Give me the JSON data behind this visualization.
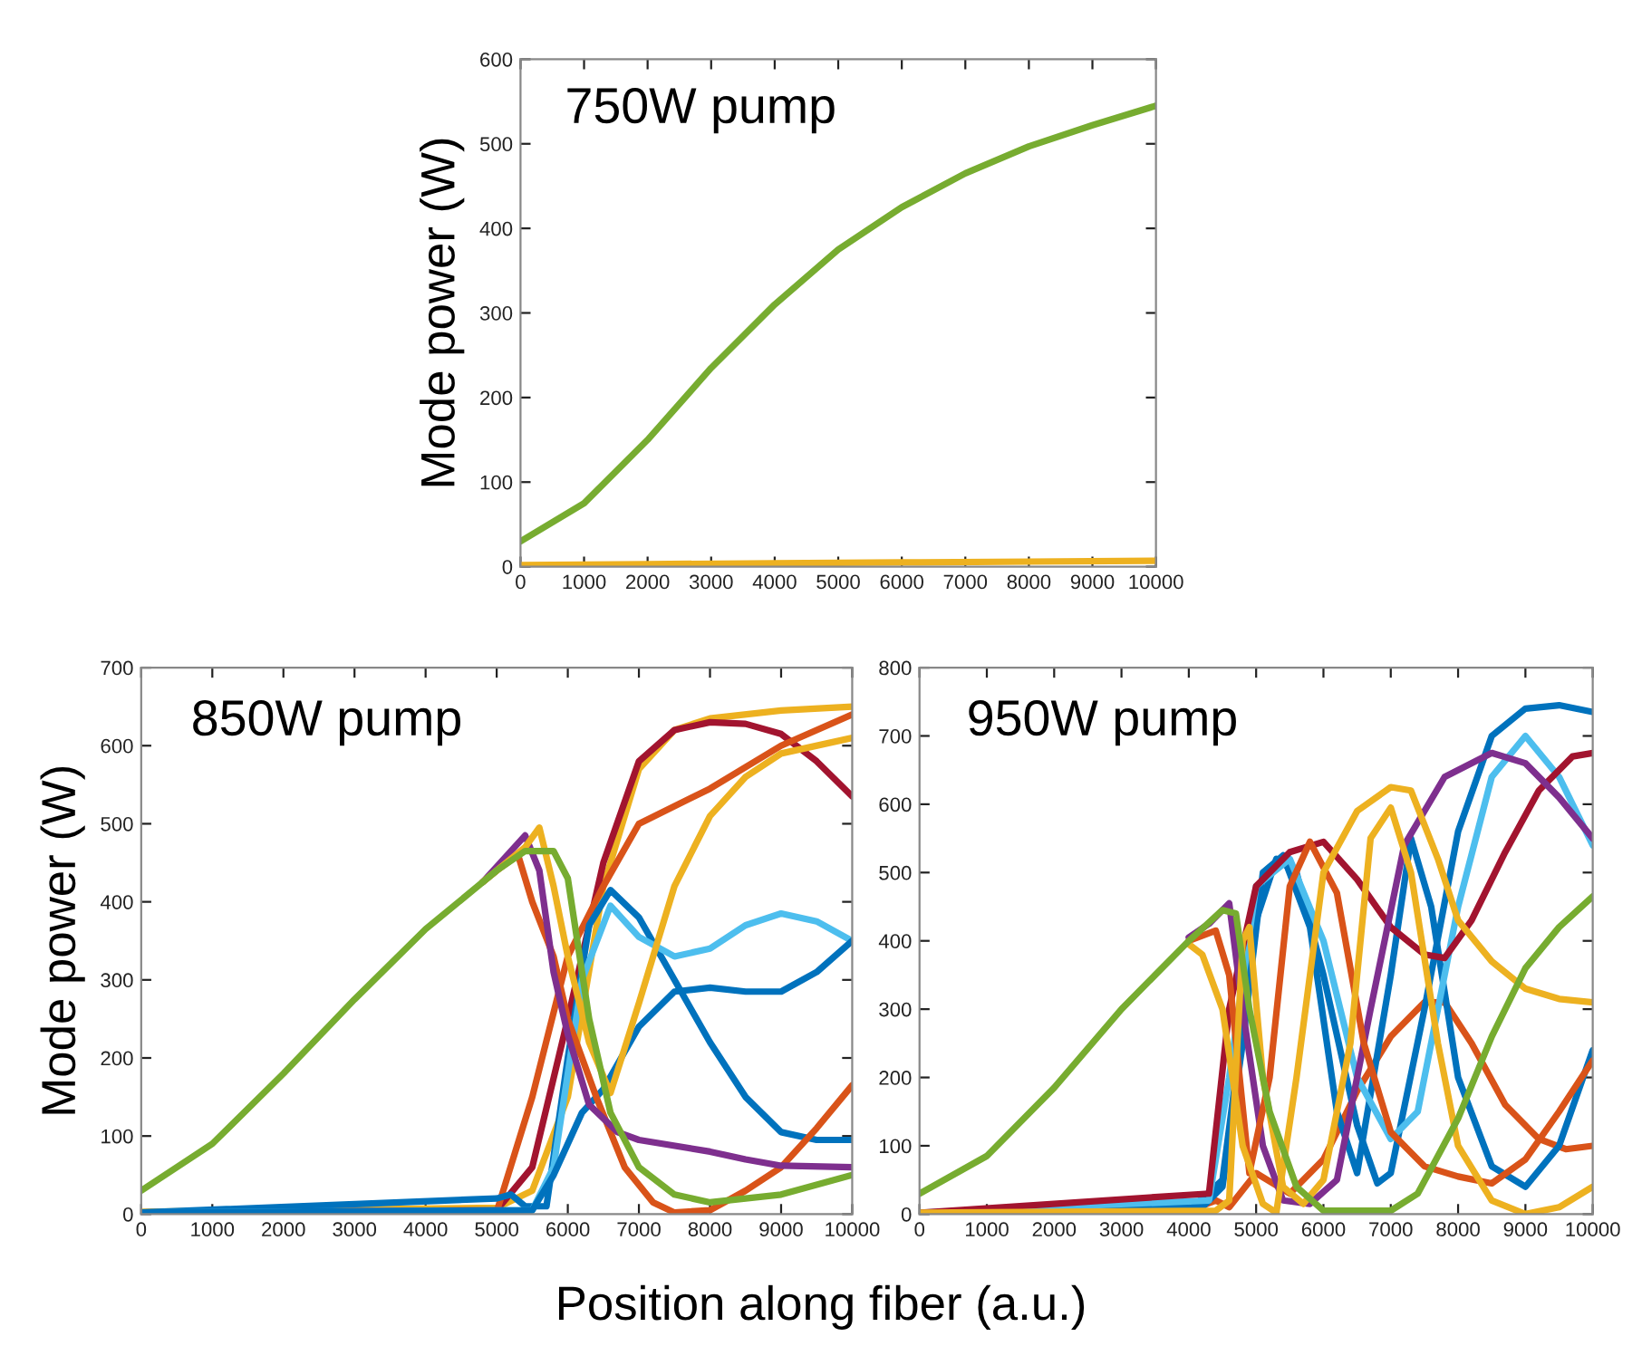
{
  "chart_data": [
    {
      "type": "line",
      "title": "750W pump",
      "ylabel": "Mode power (W)",
      "xlim": [
        0,
        10000
      ],
      "ylim": [
        0,
        600
      ],
      "xticks": [
        0,
        1000,
        2000,
        3000,
        4000,
        5000,
        6000,
        7000,
        8000,
        9000,
        10000
      ],
      "yticks": [
        0,
        100,
        200,
        300,
        400,
        500,
        600
      ],
      "grid": false,
      "legend": false,
      "series": [
        {
          "color": "#edb120",
          "x": [
            0,
            2000,
            4000,
            6000,
            8000,
            10000
          ],
          "values": [
            2,
            3,
            4,
            5,
            6,
            7
          ]
        },
        {
          "color": "#77ac30",
          "x": [
            0,
            1000,
            2000,
            3000,
            4000,
            5000,
            6000,
            7000,
            8000,
            9000,
            10000
          ],
          "values": [
            30,
            75,
            150,
            235,
            310,
            375,
            425,
            465,
            497,
            522,
            545
          ]
        }
      ]
    },
    {
      "type": "line",
      "title": "850W pump",
      "ylabel": "Mode power (W)",
      "xlabel": "Position along fiber (a.u.)",
      "xlim": [
        0,
        10000
      ],
      "ylim": [
        0,
        700
      ],
      "xticks": [
        0,
        1000,
        2000,
        3000,
        4000,
        5000,
        6000,
        7000,
        8000,
        9000,
        10000
      ],
      "yticks": [
        0,
        100,
        200,
        300,
        400,
        500,
        600,
        700
      ],
      "grid": false,
      "legend": false,
      "series": [
        {
          "color": "#edb120",
          "x": [
            0,
            5000,
            5500,
            6000,
            6500,
            7000,
            7500,
            8000,
            9000,
            10000
          ],
          "values": [
            3,
            8,
            30,
            150,
            420,
            570,
            620,
            635,
            645,
            650
          ]
        },
        {
          "color": "#a2142f",
          "x": [
            0,
            5000,
            5500,
            6000,
            6500,
            7000,
            7500,
            8000,
            8500,
            9000,
            9500,
            10000
          ],
          "values": [
            2,
            5,
            60,
            250,
            450,
            580,
            620,
            630,
            628,
            615,
            580,
            535
          ]
        },
        {
          "color": "#d95319",
          "x": [
            0,
            5000,
            5500,
            6000,
            6500,
            7000,
            8000,
            9000,
            10000
          ],
          "values": [
            2,
            3,
            150,
            330,
            420,
            500,
            545,
            600,
            640
          ]
        },
        {
          "color": "#0072bd",
          "x": [
            0,
            5000,
            5200,
            5400,
            5700,
            6000,
            6300,
            6600,
            7000,
            7500,
            8000,
            8500,
            9000,
            9500,
            10000
          ],
          "values": [
            2,
            20,
            25,
            10,
            10,
            200,
            370,
            415,
            380,
            300,
            220,
            150,
            105,
            95,
            95
          ]
        },
        {
          "color": "#4dbeee",
          "x": [
            0,
            5500,
            5800,
            6200,
            6600,
            7000,
            7500,
            8000,
            8500,
            9000,
            9500,
            10000
          ],
          "values": [
            2,
            5,
            60,
            300,
            395,
            355,
            330,
            340,
            370,
            385,
            375,
            350
          ]
        },
        {
          "color": "#0072bd",
          "x": [
            0,
            5500,
            5800,
            6200,
            6500,
            7000,
            7500,
            8000,
            8500,
            9000,
            9500,
            10000
          ],
          "values": [
            2,
            5,
            50,
            130,
            160,
            240,
            285,
            290,
            285,
            285,
            310,
            350
          ]
        },
        {
          "color": "#d95319",
          "x": [
            4800,
            5000,
            5300,
            5500,
            5800,
            6000,
            6400,
            6800,
            7200,
            7500,
            8000,
            8500,
            9000,
            9500,
            10000
          ],
          "values": [
            425,
            440,
            460,
            400,
            330,
            250,
            150,
            60,
            15,
            2,
            5,
            30,
            60,
            110,
            165
          ]
        },
        {
          "color": "#7e2f8e",
          "x": [
            4800,
            5000,
            5400,
            5600,
            5800,
            6000,
            6300,
            6700,
            7000,
            8000,
            8500,
            9000,
            10000
          ],
          "values": [
            425,
            445,
            485,
            440,
            310,
            230,
            140,
            105,
            95,
            80,
            70,
            62,
            60
          ]
        },
        {
          "color": "#edb120",
          "x": [
            4800,
            5000,
            5400,
            5600,
            5800,
            6000,
            6300,
            6600,
            7000,
            7500,
            8000,
            8500,
            9000,
            10000
          ],
          "values": [
            425,
            440,
            470,
            495,
            420,
            330,
            220,
            155,
            270,
            420,
            510,
            560,
            590,
            610
          ]
        },
        {
          "color": "#77ac30",
          "x": [
            0,
            1000,
            2000,
            3000,
            4000,
            5000,
            5400,
            5800,
            6000,
            6300,
            6600,
            7000,
            7500,
            8000,
            9000,
            10000
          ],
          "values": [
            30,
            90,
            180,
            275,
            365,
            440,
            465,
            465,
            430,
            250,
            130,
            60,
            25,
            15,
            25,
            50
          ]
        }
      ]
    },
    {
      "type": "line",
      "title": "950W pump",
      "xlim": [
        0,
        10000
      ],
      "ylim": [
        0,
        800
      ],
      "xticks": [
        0,
        1000,
        2000,
        3000,
        4000,
        5000,
        6000,
        7000,
        8000,
        9000,
        10000
      ],
      "yticks": [
        0,
        100,
        200,
        300,
        400,
        500,
        600,
        700,
        800
      ],
      "grid": false,
      "legend": false,
      "series": [
        {
          "color": "#d95319",
          "x": [
            0,
            4000,
            4400,
            4600,
            5000,
            5500,
            6000,
            6500,
            7000,
            7500,
            7800,
            8200,
            8700,
            9200,
            9600,
            10000
          ],
          "values": [
            2,
            5,
            20,
            10,
            60,
            30,
            80,
            180,
            260,
            310,
            310,
            250,
            160,
            110,
            95,
            100
          ]
        },
        {
          "color": "#0072bd",
          "x": [
            0,
            4000,
            4500,
            5000,
            5300,
            5600,
            6000,
            6500,
            6800,
            7000,
            7500,
            8000,
            8500,
            9000,
            9500,
            10000
          ],
          "values": [
            2,
            5,
            50,
            430,
            520,
            500,
            350,
            130,
            45,
            60,
            300,
            560,
            700,
            740,
            745,
            735
          ]
        },
        {
          "color": "#0072bd",
          "x": [
            0,
            4200,
            4500,
            4800,
            5100,
            5400,
            5800,
            6200,
            6500,
            7000,
            7300,
            7600,
            8000,
            8500,
            9000,
            9500,
            10000
          ],
          "values": [
            2,
            10,
            40,
            250,
            500,
            525,
            420,
            150,
            60,
            350,
            550,
            450,
            200,
            70,
            40,
            100,
            240
          ]
        },
        {
          "color": "#4dbeee",
          "x": [
            0,
            4300,
            4600,
            5000,
            5500,
            6000,
            6500,
            7000,
            7400,
            8000,
            8500,
            9000,
            9500,
            10000
          ],
          "values": [
            2,
            20,
            200,
            480,
            520,
            400,
            200,
            110,
            150,
            450,
            640,
            700,
            640,
            540
          ]
        },
        {
          "color": "#a2142f",
          "x": [
            0,
            4300,
            4600,
            5000,
            5500,
            6000,
            6500,
            7000,
            7500,
            7800,
            8200,
            8700,
            9200,
            9700,
            10000
          ],
          "values": [
            2,
            30,
            300,
            480,
            530,
            545,
            490,
            420,
            380,
            375,
            430,
            530,
            620,
            670,
            675
          ]
        },
        {
          "color": "#7e2f8e",
          "x": [
            4000,
            4300,
            4600,
            4800,
            5100,
            5400,
            5800,
            6200,
            6700,
            7200,
            7800,
            8500,
            9000,
            9500,
            10000
          ],
          "values": [
            405,
            425,
            455,
            300,
            100,
            20,
            15,
            50,
            300,
            540,
            640,
            675,
            660,
            610,
            550
          ]
        },
        {
          "color": "#d95319",
          "x": [
            4000,
            4400,
            4600,
            4900,
            5200,
            5500,
            5800,
            6200,
            6600,
            7000,
            7500,
            8000,
            8500,
            9000,
            9500,
            10000
          ],
          "values": [
            400,
            415,
            350,
            60,
            200,
            480,
            545,
            470,
            250,
            120,
            70,
            55,
            45,
            80,
            150,
            225
          ]
        },
        {
          "color": "#edb120",
          "x": [
            4000,
            4200,
            4500,
            4800,
            5100,
            5300,
            5600,
            6000,
            6500,
            7000,
            7300,
            7700,
            8000,
            8500,
            9000,
            9500,
            10000
          ],
          "values": [
            395,
            380,
            300,
            100,
            15,
            2,
            200,
            500,
            590,
            625,
            620,
            520,
            430,
            370,
            330,
            315,
            310
          ]
        },
        {
          "color": "#edb120",
          "x": [
            0,
            4400,
            4600,
            4800,
            4900,
            5100,
            5400,
            5700,
            6000,
            6400,
            6700,
            7000,
            7300,
            7700,
            8000,
            8500,
            9000,
            9500,
            10000
          ],
          "values": [
            2,
            5,
            20,
            400,
            420,
            200,
            40,
            15,
            50,
            250,
            550,
            595,
            500,
            250,
            100,
            20,
            0,
            10,
            40
          ]
        },
        {
          "color": "#77ac30",
          "x": [
            0,
            1000,
            2000,
            3000,
            4000,
            4500,
            4700,
            4900,
            5200,
            5600,
            6000,
            7000,
            7400,
            8000,
            8500,
            9000,
            9500,
            10000
          ],
          "values": [
            30,
            85,
            185,
            300,
            400,
            445,
            440,
            300,
            150,
            40,
            5,
            5,
            30,
            140,
            260,
            360,
            420,
            465
          ]
        }
      ]
    }
  ]
}
